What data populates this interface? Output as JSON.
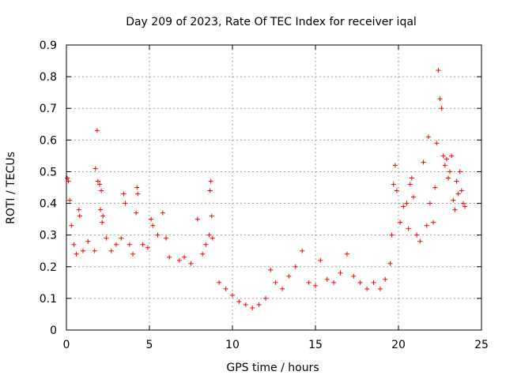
{
  "chart_data": {
    "type": "scatter",
    "title": "Day 209 of 2023, Rate Of TEC Index for receiver iqal",
    "xlabel": "GPS time / hours",
    "ylabel": "ROTI / TECUs",
    "xlim": [
      0,
      25
    ],
    "ylim": [
      0,
      0.9
    ],
    "xticks": [
      0,
      5,
      10,
      15,
      20,
      25
    ],
    "yticks": [
      0,
      0.1,
      0.2,
      0.3,
      0.4,
      0.5,
      0.6,
      0.7,
      0.8,
      0.9
    ],
    "grid": true,
    "legend": "none",
    "marker": "plus",
    "series": [
      {
        "color": "#ff0000",
        "points": [
          [
            0.05,
            0.48
          ],
          [
            0.12,
            0.47
          ],
          [
            0.2,
            0.41
          ],
          [
            0.3,
            0.33
          ],
          [
            0.45,
            0.27
          ],
          [
            0.6,
            0.24
          ],
          [
            0.75,
            0.38
          ],
          [
            0.8,
            0.36
          ],
          [
            1.0,
            0.25
          ],
          [
            1.3,
            0.28
          ],
          [
            1.7,
            0.25
          ],
          [
            1.75,
            0.51
          ],
          [
            1.85,
            0.63
          ],
          [
            1.9,
            0.47
          ],
          [
            2.0,
            0.46
          ],
          [
            2.1,
            0.44
          ],
          [
            2.05,
            0.38
          ],
          [
            2.2,
            0.36
          ],
          [
            2.15,
            0.34
          ],
          [
            2.4,
            0.29
          ],
          [
            2.7,
            0.25
          ],
          [
            3.0,
            0.27
          ],
          [
            3.3,
            0.29
          ],
          [
            3.45,
            0.43
          ],
          [
            3.55,
            0.4
          ],
          [
            3.8,
            0.27
          ],
          [
            4.0,
            0.24
          ],
          [
            4.2,
            0.37
          ],
          [
            4.25,
            0.45
          ],
          [
            4.3,
            0.43
          ],
          [
            4.6,
            0.27
          ],
          [
            4.9,
            0.26
          ],
          [
            5.1,
            0.35
          ],
          [
            5.2,
            0.33
          ],
          [
            5.5,
            0.3
          ],
          [
            5.8,
            0.37
          ],
          [
            6.0,
            0.29
          ],
          [
            6.2,
            0.23
          ],
          [
            6.8,
            0.22
          ],
          [
            7.1,
            0.23
          ],
          [
            7.5,
            0.21
          ],
          [
            7.9,
            0.35
          ],
          [
            8.2,
            0.24
          ],
          [
            8.4,
            0.27
          ],
          [
            8.6,
            0.3
          ],
          [
            8.65,
            0.44
          ],
          [
            8.7,
            0.47
          ],
          [
            8.75,
            0.36
          ],
          [
            8.8,
            0.29
          ],
          [
            9.2,
            0.15
          ],
          [
            9.6,
            0.13
          ],
          [
            10.0,
            0.11
          ],
          [
            10.4,
            0.09
          ],
          [
            10.8,
            0.08
          ],
          [
            11.2,
            0.07
          ],
          [
            11.6,
            0.08
          ],
          [
            12.0,
            0.1
          ],
          [
            12.3,
            0.19
          ],
          [
            12.6,
            0.15
          ],
          [
            13.0,
            0.13
          ],
          [
            13.4,
            0.17
          ],
          [
            13.8,
            0.2
          ],
          [
            14.2,
            0.25
          ],
          [
            14.6,
            0.15
          ],
          [
            15.0,
            0.14
          ],
          [
            15.3,
            0.22
          ],
          [
            15.7,
            0.16
          ],
          [
            16.1,
            0.15
          ],
          [
            16.5,
            0.18
          ],
          [
            16.9,
            0.24
          ],
          [
            17.3,
            0.17
          ],
          [
            17.7,
            0.15
          ],
          [
            18.1,
            0.13
          ],
          [
            18.5,
            0.15
          ],
          [
            18.9,
            0.13
          ],
          [
            19.2,
            0.16
          ],
          [
            19.5,
            0.21
          ],
          [
            19.6,
            0.3
          ],
          [
            19.7,
            0.46
          ],
          [
            19.8,
            0.52
          ],
          [
            19.9,
            0.44
          ],
          [
            20.1,
            0.34
          ],
          [
            20.3,
            0.39
          ],
          [
            20.5,
            0.4
          ],
          [
            20.6,
            0.32
          ],
          [
            20.7,
            0.46
          ],
          [
            20.8,
            0.48
          ],
          [
            20.9,
            0.42
          ],
          [
            21.1,
            0.3
          ],
          [
            21.3,
            0.28
          ],
          [
            21.5,
            0.53
          ],
          [
            21.7,
            0.33
          ],
          [
            21.8,
            0.61
          ],
          [
            21.9,
            0.4
          ],
          [
            22.1,
            0.34
          ],
          [
            22.2,
            0.45
          ],
          [
            22.3,
            0.59
          ],
          [
            22.4,
            0.82
          ],
          [
            22.5,
            0.73
          ],
          [
            22.6,
            0.7
          ],
          [
            22.7,
            0.55
          ],
          [
            22.8,
            0.52
          ],
          [
            22.9,
            0.54
          ],
          [
            23.0,
            0.48
          ],
          [
            23.1,
            0.5
          ],
          [
            23.2,
            0.55
          ],
          [
            23.3,
            0.41
          ],
          [
            23.4,
            0.38
          ],
          [
            23.5,
            0.47
          ],
          [
            23.6,
            0.43
          ],
          [
            23.7,
            0.5
          ],
          [
            23.8,
            0.44
          ],
          [
            23.9,
            0.4
          ],
          [
            24.0,
            0.39
          ]
        ]
      }
    ]
  }
}
